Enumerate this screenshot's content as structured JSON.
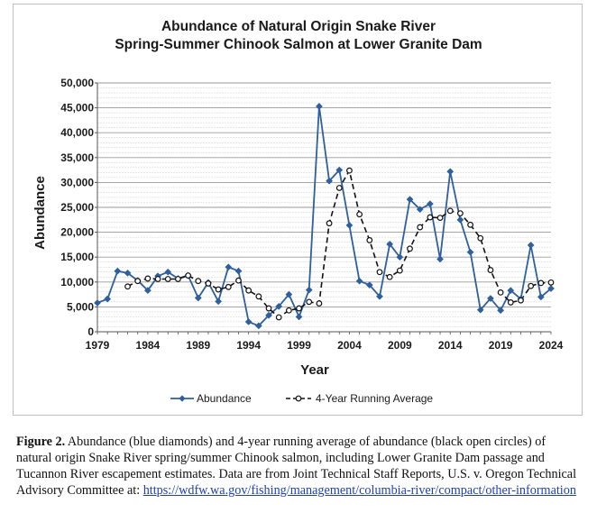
{
  "chart_data": {
    "type": "line",
    "title_line1": "Abundance of Natural Origin Snake River",
    "title_line2": "Spring-Summer Chinook Salmon at Lower Granite Dam",
    "xlabel": "Year",
    "ylabel": "Abundance",
    "xlim": [
      1979,
      2024
    ],
    "ylim": [
      0,
      50000
    ],
    "x_ticks": [
      "1979",
      "1984",
      "1989",
      "1994",
      "1999",
      "2004",
      "2009",
      "2014",
      "2019",
      "2024"
    ],
    "y_ticks": [
      "0",
      "5,000",
      "10,000",
      "15,000",
      "20,000",
      "25,000",
      "30,000",
      "35,000",
      "40,000",
      "45,000",
      "50,000"
    ],
    "grid": true,
    "legend_position": "bottom",
    "series": [
      {
        "name": "Abundance",
        "style": "solid line with filled diamonds",
        "color": "#2e5f9e",
        "x": [
          1979,
          1980,
          1981,
          1982,
          1983,
          1984,
          1985,
          1986,
          1987,
          1988,
          1989,
          1990,
          1991,
          1992,
          1993,
          1994,
          1995,
          1996,
          1997,
          1998,
          1999,
          2000,
          2001,
          2002,
          2003,
          2004,
          2005,
          2006,
          2007,
          2008,
          2009,
          2010,
          2011,
          2012,
          2013,
          2014,
          2015,
          2016,
          2017,
          2018,
          2019,
          2020,
          2021,
          2022,
          2023,
          2024
        ],
        "values": [
          5800,
          6600,
          12200,
          11800,
          10300,
          8300,
          11200,
          12000,
          10700,
          11300,
          6800,
          9900,
          6100,
          13000,
          12200,
          2000,
          1200,
          3300,
          5100,
          7500,
          3000,
          8400,
          45300,
          30300,
          32500,
          21400,
          10200,
          9400,
          7100,
          17600,
          15000,
          26600,
          24600,
          25700,
          14600,
          32200,
          22500,
          16000,
          4400,
          6700,
          4300,
          8300,
          6600,
          17400,
          7000,
          8700
        ]
      },
      {
        "name": "4-Year Running Average",
        "style": "dashed line with open circles",
        "color": "#111111",
        "x": [
          1982,
          1983,
          1984,
          1985,
          1986,
          1987,
          1988,
          1989,
          1990,
          1991,
          1992,
          1993,
          1994,
          1995,
          1996,
          1997,
          1998,
          1999,
          2000,
          2001,
          2002,
          2003,
          2004,
          2005,
          2006,
          2007,
          2008,
          2009,
          2010,
          2011,
          2012,
          2013,
          2014,
          2015,
          2016,
          2017,
          2018,
          2019,
          2020,
          2021,
          2022,
          2023,
          2024
        ],
        "values": [
          9100,
          10200,
          10700,
          10600,
          10600,
          10600,
          11300,
          10200,
          9700,
          8500,
          9000,
          10300,
          8300,
          7100,
          4700,
          2900,
          4300,
          4700,
          6000,
          5700,
          21800,
          28900,
          32400,
          23600,
          18400,
          12000,
          11000,
          12300,
          16700,
          21000,
          23000,
          22900,
          24300,
          23800,
          21500,
          18800,
          12400,
          7900,
          5900,
          6300,
          9200,
          9800,
          9900
        ]
      }
    ]
  },
  "caption": {
    "label": "Figure 2.",
    "text": "Abundance (blue diamonds) and 4-year running average of abundance (black open circles) of natural origin Snake River spring/summer Chinook salmon, including Lower Granite Dam passage and Tucannon River escapement estimates. Data are from Joint Technical Staff Reports, U.S. v. Oregon Technical Advisory Committee at:",
    "link": "https://wdfw.wa.gov/fishing/management/columbia-river/compact/other-information"
  }
}
